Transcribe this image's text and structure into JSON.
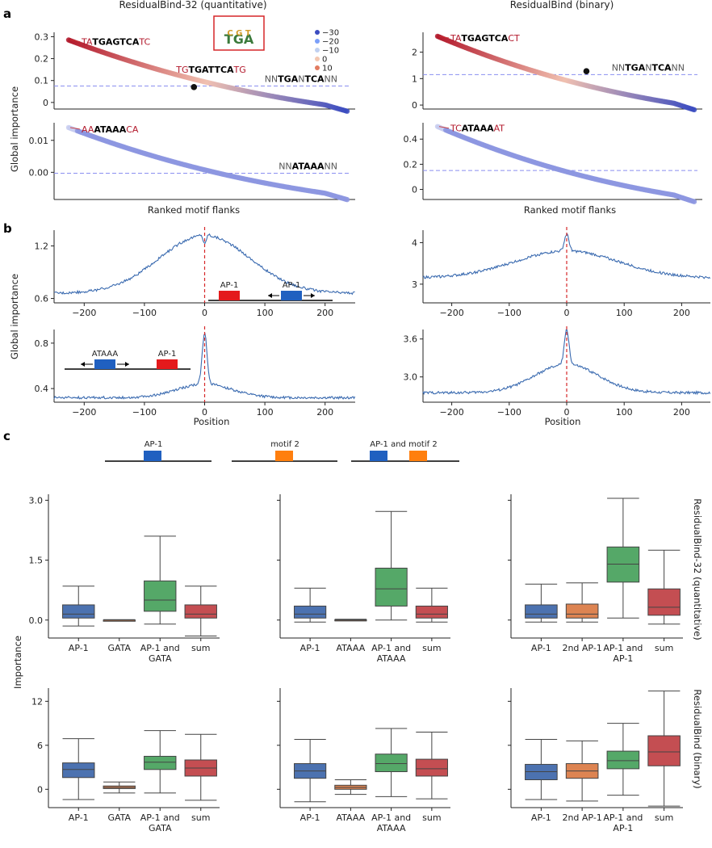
{
  "panels": {
    "a": "a",
    "b": "b",
    "c": "c"
  },
  "titles": {
    "left": "ResidualBind-32 (quantitative)",
    "right": "ResidualBind (binary)"
  },
  "common_labels": {
    "global_importance": "Global importance",
    "ranked_flanks": "Ranked motif flanks",
    "position": "Position",
    "importance": "Importance"
  },
  "colors": {
    "red": "#b2182b",
    "blue": "#3b4cc0",
    "line": "#3b6bb0",
    "dashed_red": "#d62728",
    "dashed_blue": "#8a8ff0",
    "box_blue": "#4c72b0",
    "box_orange": "#dd8452",
    "box_green": "#55a868",
    "box_red": "#c44e52",
    "ap1_red": "#e41a1c",
    "ap1_blue": "#2060c0",
    "motif2_orange": "#ff7f0e"
  },
  "icons": {
    "logo": "sequence-logo-icon"
  },
  "chart_data": [
    {
      "id": "a-top-left",
      "type": "scatter",
      "title": "ResidualBind-32 (quantitative)",
      "ylabel": "Global importance",
      "xlabel": "",
      "yticks": [
        0.0,
        0.1,
        0.2,
        0.3
      ],
      "ylim": [
        -0.03,
        0.32
      ],
      "n": 220,
      "y_start": 0.285,
      "y_end": -0.025,
      "baseline": 0.075,
      "highlight": {
        "rank": 0.45,
        "value": 0.07
      },
      "annotations": {
        "top": [
          {
            "t": "TA",
            "b": false
          },
          {
            "t": "TGAGTCA",
            "b": true
          },
          {
            "t": "TC",
            "b": false
          }
        ],
        "mid": [
          {
            "t": "TG",
            "b": false
          },
          {
            "t": "TGATTCA",
            "b": true
          },
          {
            "t": "TG",
            "b": false
          }
        ],
        "ref": [
          {
            "t": "NN",
            "b": false
          },
          {
            "t": "TGA",
            "b": true
          },
          {
            "t": "N",
            "b": false
          },
          {
            "t": "TCA",
            "b": true
          },
          {
            "t": "NN",
            "b": false
          }
        ]
      },
      "legend": [
        "−30",
        "−20",
        "−10",
        "0",
        "10"
      ]
    },
    {
      "id": "a-top-right",
      "type": "scatter",
      "yticks": [
        0,
        1,
        2
      ],
      "ylim": [
        -0.15,
        2.75
      ],
      "n": 220,
      "y_start": 2.6,
      "y_end": -0.05,
      "baseline": 1.15,
      "highlight": {
        "rank": 0.58,
        "value": 1.28
      },
      "annotations": {
        "top": [
          {
            "t": "TA",
            "b": false
          },
          {
            "t": "TGAGTCA",
            "b": true
          },
          {
            "t": "CT",
            "b": false
          }
        ],
        "ref": [
          {
            "t": "NN",
            "b": false
          },
          {
            "t": "TGA",
            "b": true
          },
          {
            "t": "N",
            "b": false
          },
          {
            "t": "TCA",
            "b": true
          },
          {
            "t": "NN",
            "b": false
          }
        ]
      }
    },
    {
      "id": "a-bottom-left",
      "type": "scatter",
      "xlabel": "Ranked motif flanks",
      "yticks": [
        0.0,
        0.01
      ],
      "ytick_labels": [
        "0.00",
        "0.01"
      ],
      "ylim": [
        -0.0085,
        0.0155
      ],
      "n": 220,
      "y_start": 0.014,
      "y_end": -0.0075,
      "baseline": -0.0003,
      "annotations": {
        "top": [
          {
            "t": "AA",
            "b": false
          },
          {
            "t": "ATAAA",
            "b": true
          },
          {
            "t": "CA",
            "b": false
          }
        ],
        "ref": [
          {
            "t": "NN",
            "b": false
          },
          {
            "t": "ATAAA",
            "b": true
          },
          {
            "t": "NN",
            "b": false
          }
        ]
      }
    },
    {
      "id": "a-bottom-right",
      "type": "scatter",
      "xlabel": "Ranked motif flanks",
      "yticks": [
        0.0,
        0.2,
        0.4
      ],
      "ylim": [
        -0.08,
        0.53
      ],
      "n": 220,
      "y_start": 0.5,
      "y_end": -0.07,
      "baseline": 0.15,
      "annotations": {
        "top": [
          {
            "t": "TC",
            "b": false
          },
          {
            "t": "ATAAA",
            "b": true
          },
          {
            "t": "AT",
            "b": false
          }
        ]
      }
    },
    {
      "id": "b-top-left",
      "type": "line",
      "ylabel": "Global importance",
      "xticks": [
        -200,
        -100,
        0,
        100,
        200
      ],
      "xticks_labels": [
        "−200",
        "−100",
        "0",
        "100",
        "200"
      ],
      "xlim": [
        -250,
        250
      ],
      "yticks": [
        0.6,
        1.2
      ],
      "ytick_labels": [
        "0.6",
        "1.2"
      ],
      "ylim": [
        0.55,
        1.38
      ],
      "base": 0.66,
      "peak": 0.66,
      "sigma": 75,
      "center_peak": 0.12,
      "schematic": {
        "labels": [
          "AP-1",
          "AP-1"
        ]
      }
    },
    {
      "id": "b-top-right",
      "type": "line",
      "xticks": [
        -200,
        -100,
        0,
        100,
        200
      ],
      "xticks_labels": [
        "−200",
        "−100",
        "0",
        "100",
        "200"
      ],
      "xlim": [
        -250,
        250
      ],
      "yticks": [
        3,
        4
      ],
      "ylim": [
        2.55,
        4.3
      ],
      "base": 3.15,
      "peak": 0.65,
      "sigma": 90,
      "center_peak": 0.4
    },
    {
      "id": "b-bottom-left",
      "type": "line",
      "xlabel": "Position",
      "xticks": [
        -200,
        -100,
        0,
        100,
        200
      ],
      "xticks_labels": [
        "−200",
        "−100",
        "0",
        "100",
        "200"
      ],
      "xlim": [
        -250,
        250
      ],
      "yticks": [
        0.4,
        0.8
      ],
      "ytick_labels": [
        "0.4",
        "0.8"
      ],
      "ylim": [
        0.28,
        0.92
      ],
      "base": 0.32,
      "peak": 0.12,
      "sigma": 45,
      "center_peak": 0.45,
      "schematic": {
        "labels": [
          "ATAAA",
          "AP-1"
        ]
      }
    },
    {
      "id": "b-bottom-right",
      "type": "line",
      "xlabel": "Position",
      "xticks": [
        -200,
        -100,
        0,
        100,
        200
      ],
      "xticks_labels": [
        "−200",
        "−100",
        "0",
        "100",
        "200"
      ],
      "xlim": [
        -250,
        250
      ],
      "yticks": [
        3.0,
        3.6
      ],
      "ytick_labels": [
        "3.0",
        "3.6"
      ],
      "ylim": [
        2.6,
        3.75
      ],
      "base": 2.75,
      "peak": 0.45,
      "sigma": 55,
      "center_peak": 0.55
    },
    {
      "id": "c-schematics",
      "type": "table",
      "labels": [
        "AP-1",
        "motif 2",
        "AP-1 and motif 2"
      ]
    },
    {
      "id": "c-boxplots",
      "type": "table",
      "ylabel": "Importance",
      "row_labels": [
        "ResidualBind-32 (quantitative)",
        "ResidualBind (binary)"
      ],
      "rows": [
        {
          "yticks": [
            0.0,
            1.5,
            3.0
          ],
          "ytick_labels": [
            "0.0",
            "1.5",
            "3.0"
          ],
          "ylim": [
            -0.45,
            3.15
          ],
          "groups": [
            {
              "labels": [
                "AP-1",
                "GATA",
                "AP-1 and\nGATA",
                "sum"
              ],
              "boxes": [
                [
                  -0.15,
                  0.05,
                  0.15,
                  0.38,
                  0.85
                ],
                [
                  -0.01,
                  0,
                  0,
                  0,
                  0.01
                ],
                [
                  -0.1,
                  0.22,
                  0.5,
                  0.98,
                  2.1
                ],
                [
                  -0.4,
                  0.05,
                  0.15,
                  0.38,
                  0.85
                ]
              ]
            },
            {
              "labels": [
                "AP-1",
                "ATAAA",
                "AP-1 and\nATAAA",
                "sum"
              ],
              "boxes": [
                [
                  -0.05,
                  0.05,
                  0.15,
                  0.35,
                  0.8
                ],
                [
                  -0.02,
                  -0.01,
                  0,
                  0.01,
                  0.02
                ],
                [
                  0,
                  0.35,
                  0.78,
                  1.3,
                  2.72
                ],
                [
                  -0.05,
                  0.05,
                  0.15,
                  0.35,
                  0.8
                ]
              ]
            },
            {
              "labels": [
                "AP-1",
                "2nd AP-1",
                "AP-1 and\nAP-1",
                "sum"
              ],
              "boxes": [
                [
                  -0.05,
                  0.05,
                  0.15,
                  0.38,
                  0.9
                ],
                [
                  -0.05,
                  0.05,
                  0.15,
                  0.4,
                  0.93
                ],
                [
                  0.05,
                  0.95,
                  1.4,
                  1.83,
                  3.05
                ],
                [
                  -0.1,
                  0.12,
                  0.32,
                  0.78,
                  1.75
                ]
              ]
            }
          ]
        },
        {
          "yticks": [
            0,
            6,
            12
          ],
          "ytick_labels": [
            "0",
            "6",
            "12"
          ],
          "ylim": [
            -2.5,
            13.8
          ],
          "groups": [
            {
              "labels": [
                "AP-1",
                "GATA",
                "AP-1 and\nGATA",
                "sum"
              ],
              "boxes": [
                [
                  -1.4,
                  1.6,
                  2.7,
                  3.6,
                  6.9
                ],
                [
                  -0.5,
                  0.1,
                  0.25,
                  0.45,
                  1.0
                ],
                [
                  -0.5,
                  2.7,
                  3.7,
                  4.5,
                  8.0
                ],
                [
                  -1.5,
                  1.8,
                  2.9,
                  4.0,
                  7.5
                ]
              ]
            },
            {
              "labels": [
                "AP-1",
                "ATAAA",
                "AP-1 and\nATAAA",
                "sum"
              ],
              "boxes": [
                [
                  -1.7,
                  1.5,
                  2.5,
                  3.5,
                  6.8
                ],
                [
                  -0.7,
                  0.0,
                  0.25,
                  0.55,
                  1.3
                ],
                [
                  -1.0,
                  2.4,
                  3.5,
                  4.8,
                  8.3
                ],
                [
                  -1.3,
                  1.8,
                  2.8,
                  4.1,
                  7.8
                ]
              ]
            },
            {
              "labels": [
                "AP-1",
                "2nd AP-1",
                "AP-1 and\nAP-1",
                "sum"
              ],
              "boxes": [
                [
                  -1.4,
                  1.3,
                  2.4,
                  3.4,
                  6.8
                ],
                [
                  -1.6,
                  1.5,
                  2.5,
                  3.5,
                  6.6
                ],
                [
                  -0.8,
                  2.8,
                  3.9,
                  5.2,
                  9.0
                ],
                [
                  -2.3,
                  3.2,
                  5.1,
                  7.3,
                  13.4
                ]
              ]
            }
          ]
        }
      ]
    }
  ]
}
